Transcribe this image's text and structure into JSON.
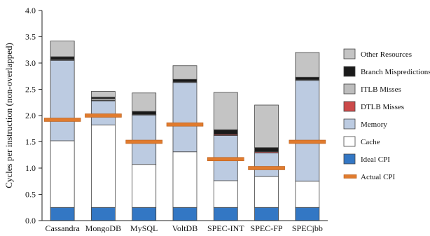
{
  "chart_data": {
    "type": "bar",
    "stacked": true,
    "ylabel": "Cycles per instruction (non-overlapped)",
    "xlabel": "",
    "ylim": [
      0,
      4.0
    ],
    "y_ticks": [
      "0.0",
      "0.5",
      "1.0",
      "1.5",
      "2.0",
      "2.5",
      "3.0",
      "3.5",
      "4.0"
    ],
    "categories": [
      "Cassandra",
      "MongoDB",
      "MySQL",
      "VoltDB",
      "SPEC-INT",
      "SPEC-FP",
      "SPECjbb"
    ],
    "legend_position": "right",
    "grid": false,
    "series": [
      {
        "name": "Ideal CPI",
        "color": "#3377c4",
        "values": [
          0.25,
          0.25,
          0.25,
          0.25,
          0.25,
          0.25,
          0.25
        ]
      },
      {
        "name": "Cache",
        "color": "#ffffff",
        "values": [
          1.27,
          1.57,
          0.82,
          1.06,
          0.51,
          0.59,
          0.5
        ]
      },
      {
        "name": "Memory",
        "color": "#bccbe1",
        "values": [
          1.53,
          0.46,
          0.94,
          1.32,
          0.86,
          0.45,
          1.92
        ]
      },
      {
        "name": "DTLB Misses",
        "color": "#cc4a4a",
        "values": [
          0.01,
          0.01,
          0.01,
          0.01,
          0.02,
          0.02,
          0.01
        ]
      },
      {
        "name": "ITLB Misses",
        "color": "#bdbdbd",
        "values": [
          0.01,
          0.03,
          0.0,
          0.0,
          0.0,
          0.0,
          0.0
        ]
      },
      {
        "name": "Branch Mispredictions",
        "color": "#1a1a1a",
        "values": [
          0.05,
          0.03,
          0.06,
          0.05,
          0.09,
          0.08,
          0.05
        ]
      },
      {
        "name": "Other Resources",
        "color": "#c4c4c4",
        "values": [
          0.3,
          0.11,
          0.35,
          0.26,
          0.71,
          0.81,
          0.47
        ]
      }
    ],
    "overlay": {
      "name": "Actual CPI",
      "color": "#e07b2e",
      "values": [
        1.92,
        2.0,
        1.5,
        1.83,
        1.17,
        1.0,
        1.5
      ]
    },
    "legend": [
      {
        "name": "Other Resources",
        "color": "#c4c4c4"
      },
      {
        "name": "Branch Mispredictions",
        "color": "#1a1a1a"
      },
      {
        "name": "ITLB Misses",
        "color": "#bdbdbd"
      },
      {
        "name": "DTLB Misses",
        "color": "#cc4a4a"
      },
      {
        "name": "Memory",
        "color": "#bccbe1"
      },
      {
        "name": "Cache",
        "color": "#ffffff"
      },
      {
        "name": "Ideal CPI",
        "color": "#3377c4"
      },
      {
        "name": "Actual CPI",
        "color": "#e07b2e"
      }
    ]
  }
}
